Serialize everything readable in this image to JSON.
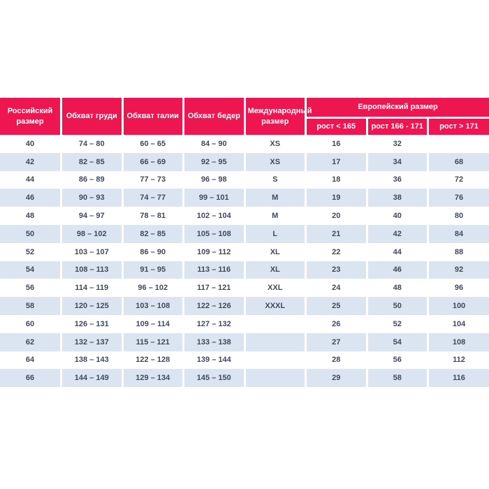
{
  "colors": {
    "header_background": "#ED1651",
    "header_text": "#FFFFFF",
    "alt_row_background": "#DBE5F2",
    "cell_text": "#3E4A59",
    "page_background": "#FFFFFF"
  },
  "chart_data": {
    "type": "table",
    "title": "",
    "columns": [
      "Российский размер",
      "Обхват груди",
      "Обхват талии",
      "Обхват бедер",
      "Международный размер",
      "Европейский размер / рост < 165",
      "Европейский размер / рост 166 - 171",
      "Европейский размер / рост > 171"
    ],
    "rows": [
      [
        "40",
        "74 – 80",
        "60 – 65",
        "84 – 90",
        "XS",
        "16",
        "32",
        ""
      ],
      [
        "42",
        "82 – 85",
        "66 – 69",
        "92 – 95",
        "XS",
        "17",
        "34",
        "68"
      ],
      [
        "44",
        "86 – 89",
        "77 – 73",
        "96 – 98",
        "S",
        "18",
        "36",
        "72"
      ],
      [
        "46",
        "90 – 93",
        "74 – 77",
        "99 – 101",
        "M",
        "19",
        "38",
        "76"
      ],
      [
        "48",
        "94 – 97",
        "78 – 81",
        "102 – 104",
        "M",
        "20",
        "40",
        "80"
      ],
      [
        "50",
        "98 – 102",
        "82 – 85",
        "105 – 108",
        "L",
        "21",
        "42",
        "84"
      ],
      [
        "52",
        "103 – 107",
        "86 – 90",
        "109 – 112",
        "XL",
        "22",
        "44",
        "88"
      ],
      [
        "54",
        "108 – 113",
        "91 – 95",
        "113 – 116",
        "XL",
        "23",
        "46",
        "92"
      ],
      [
        "56",
        "114 – 119",
        "96 – 102",
        "117 – 121",
        "XXL",
        "24",
        "48",
        "96"
      ],
      [
        "58",
        "120 – 125",
        "103 – 108",
        "122 – 126",
        "XXXL",
        "25",
        "50",
        "100"
      ],
      [
        "60",
        "126 – 131",
        "109 – 114",
        "127 – 132",
        "",
        "26",
        "52",
        "104"
      ],
      [
        "62",
        "132 – 137",
        "115 – 121",
        "133 – 138",
        "",
        "27",
        "54",
        "108"
      ],
      [
        "64",
        "138 – 143",
        "122 – 128",
        "139 – 144",
        "",
        "28",
        "56",
        "112"
      ],
      [
        "66",
        "144 – 149",
        "129 – 134",
        "145 – 150",
        "",
        "29",
        "58",
        "116"
      ]
    ]
  },
  "table": {
    "headers": {
      "russian_size": "Российский размер",
      "chest": "Обхват груди",
      "waist": "Обхват талии",
      "hips": "Обхват бедер",
      "international": "Международный размер",
      "european": "Европейский размер",
      "eu_sub": [
        "рост < 165",
        "рост 166 - 171",
        "рост > 171"
      ]
    },
    "rows": [
      [
        "40",
        "74 – 80",
        "60 – 65",
        "84 – 90",
        "XS",
        "16",
        "32",
        ""
      ],
      [
        "42",
        "82 – 85",
        "66 – 69",
        "92 – 95",
        "XS",
        "17",
        "34",
        "68"
      ],
      [
        "44",
        "86 – 89",
        "77 – 73",
        "96 – 98",
        "S",
        "18",
        "36",
        "72"
      ],
      [
        "46",
        "90 – 93",
        "74 – 77",
        "99 – 101",
        "M",
        "19",
        "38",
        "76"
      ],
      [
        "48",
        "94 – 97",
        "78 – 81",
        "102 – 104",
        "M",
        "20",
        "40",
        "80"
      ],
      [
        "50",
        "98 – 102",
        "82 – 85",
        "105 – 108",
        "L",
        "21",
        "42",
        "84"
      ],
      [
        "52",
        "103 – 107",
        "86 – 90",
        "109 – 112",
        "XL",
        "22",
        "44",
        "88"
      ],
      [
        "54",
        "108 – 113",
        "91 – 95",
        "113 – 116",
        "XL",
        "23",
        "46",
        "92"
      ],
      [
        "56",
        "114 – 119",
        "96 – 102",
        "117 – 121",
        "XXL",
        "24",
        "48",
        "96"
      ],
      [
        "58",
        "120 – 125",
        "103 – 108",
        "122 – 126",
        "XXXL",
        "25",
        "50",
        "100"
      ],
      [
        "60",
        "126 – 131",
        "109 – 114",
        "127 – 132",
        "",
        "26",
        "52",
        "104"
      ],
      [
        "62",
        "132 – 137",
        "115 – 121",
        "133 – 138",
        "",
        "27",
        "54",
        "108"
      ],
      [
        "64",
        "138 – 143",
        "122 – 128",
        "139 – 144",
        "",
        "28",
        "56",
        "112"
      ],
      [
        "66",
        "144 – 149",
        "129 – 134",
        "145 – 150",
        "",
        "29",
        "58",
        "116"
      ]
    ]
  }
}
